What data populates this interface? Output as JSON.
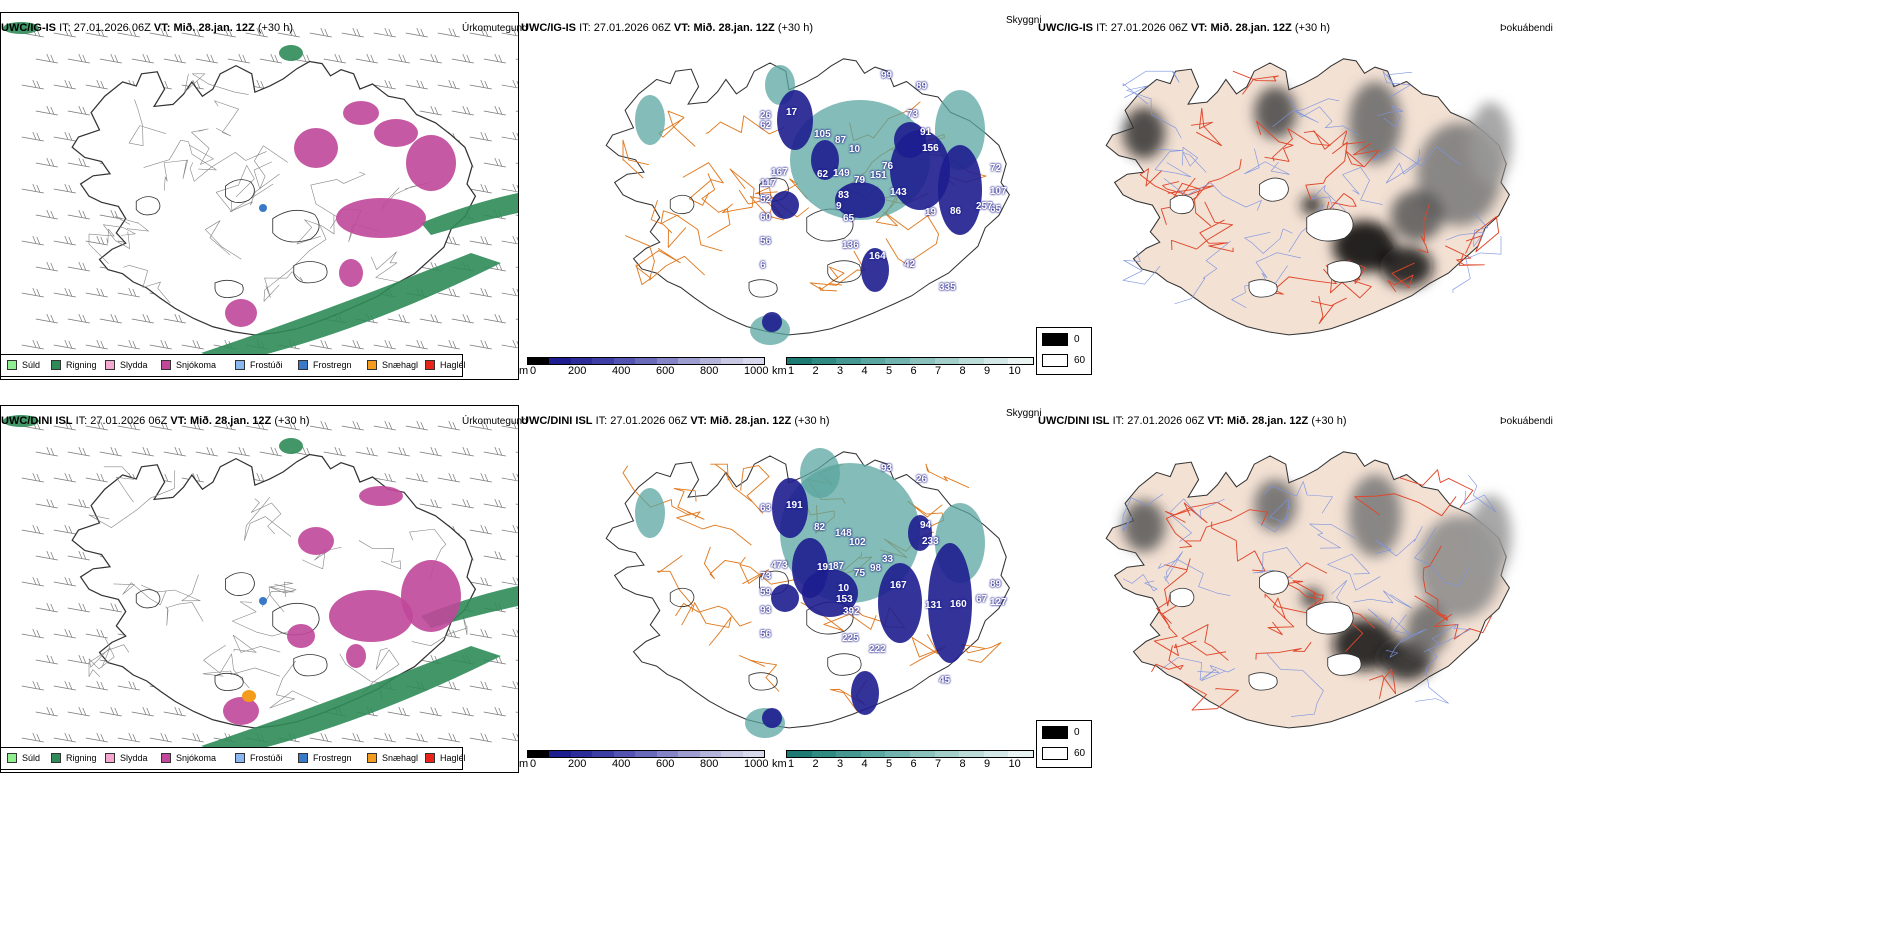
{
  "rows": [
    {
      "model": "UWC/IG-IS",
      "it_label": "IT:",
      "it_value": "27.01.2026 06Z",
      "vt_label": "VT:",
      "vt_value": "Mið. 28.jan. 12Z",
      "lead": "(+30 h)",
      "cloud_numbers": [
        "79",
        "83",
        "10",
        "19",
        "167",
        "156",
        "136",
        "17",
        "65",
        "60",
        "89",
        "335",
        "149",
        "151",
        "9",
        "87",
        "86",
        "117",
        "91",
        "164",
        "26",
        "107",
        "56",
        "99",
        "143",
        "62",
        "76",
        "65",
        "105",
        "257",
        "52",
        "73",
        "42",
        "62",
        "72",
        "6"
      ]
    },
    {
      "model": "UWC/DINI ISL",
      "it_label": "IT:",
      "it_value": "27.01.2026 06Z",
      "vt_label": "VT:",
      "vt_value": "Mið. 28.jan. 12Z",
      "lead": "(+30 h)",
      "cloud_numbers": [
        "75",
        "10",
        "102",
        "131",
        "473",
        "233",
        "225",
        "191",
        "127",
        "93",
        "26",
        "45",
        "87",
        "98",
        "153",
        "148",
        "160",
        "73",
        "94",
        "222",
        "63",
        "89",
        "56",
        "93",
        "167",
        "191",
        "33",
        "392",
        "82",
        "67",
        "59"
      ]
    }
  ],
  "panel_titles": {
    "precip": "Úrkomutegund",
    "visibility": "Skyggni",
    "fog": "Þokuábendi"
  },
  "precip_legend": [
    {
      "label": "Súld",
      "color": "#90ee90"
    },
    {
      "label": "Rigning",
      "color": "#2e8b57"
    },
    {
      "label": "Slydda",
      "color": "#f4a7d0"
    },
    {
      "label": "Snjókoma",
      "color": "#c0479a"
    },
    {
      "label": "Frostúði",
      "color": "#87b8f0"
    },
    {
      "label": "Frostregn",
      "color": "#3a78c8"
    },
    {
      "label": "Snæhagl",
      "color": "#f29b1c"
    },
    {
      "label": "Haglél",
      "color": "#e8231a"
    }
  ],
  "cloudbase_bar": {
    "unit": "m",
    "ticks": [
      "0",
      "200",
      "400",
      "600",
      "800",
      "1000"
    ],
    "colors": [
      "#000000",
      "#1d1d8f",
      "#2d2d9a",
      "#3d3da6",
      "#5353b1",
      "#6a6abb",
      "#8484c6",
      "#9d9dd0",
      "#b4b4da",
      "#c8c8e3",
      "#d8d8ec"
    ]
  },
  "visibility_bar": {
    "unit": "km",
    "ticks": [
      "1",
      "2",
      "3",
      "4",
      "5",
      "6",
      "7",
      "8",
      "9",
      "10"
    ],
    "colors": [
      "#1d7a72",
      "#2f8a82",
      "#449891",
      "#5aa6a0",
      "#71b3ae",
      "#8ac1bd",
      "#a3cfcb",
      "#bcdcd9",
      "#d3e8e6",
      "#e8f3f2"
    ]
  },
  "fog_legend": {
    "low": "0",
    "high": "60",
    "low_color": "#000000",
    "high_color": "#ffffff"
  }
}
